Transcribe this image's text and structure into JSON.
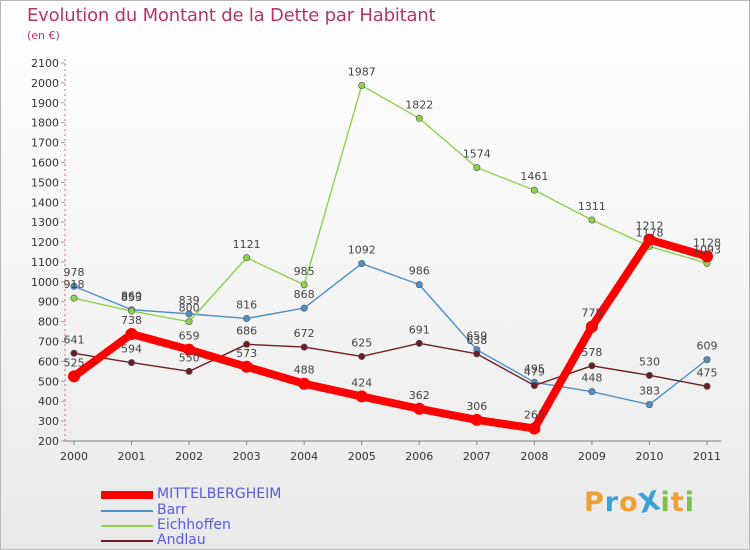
{
  "chart_data": {
    "type": "line",
    "title": "Evolution du Montant de la Dette par Habitant",
    "subtitle": "(en €)",
    "x": [
      "2000",
      "2001",
      "2002",
      "2003",
      "2004",
      "2005",
      "2006",
      "2007",
      "2008",
      "2009",
      "2010",
      "2011"
    ],
    "y_ticks": [
      200,
      300,
      400,
      500,
      600,
      700,
      800,
      900,
      1000,
      1100,
      1200,
      1300,
      1400,
      1500,
      1600,
      1700,
      1800,
      1900,
      2000,
      2100
    ],
    "ylim": [
      200,
      2100
    ],
    "grid": false,
    "legend_position": "bottom-left",
    "series": [
      {
        "name": "MITTELBERGHEIM",
        "color": "#ff0000",
        "values": [
          525,
          738,
          659,
          573,
          488,
          424,
          362,
          306,
          263,
          775,
          1212,
          1128
        ],
        "labels": [
          "525",
          "738",
          "659",
          "573",
          "488",
          "424",
          "362",
          "306",
          "263",
          "775",
          "1212",
          "1128"
        ]
      },
      {
        "name": "Barr",
        "color": "#4f8fc8",
        "values": [
          978,
          860,
          839,
          816,
          868,
          1092,
          986,
          659,
          495,
          448,
          383,
          609
        ],
        "labels": [
          "978",
          "860",
          "839",
          "816",
          "868",
          "1092",
          "986",
          "659",
          "495",
          "448",
          "383",
          "609"
        ]
      },
      {
        "name": "Eichhoffen",
        "color": "#8ed14b",
        "values": [
          918,
          853,
          800,
          1121,
          985,
          1987,
          1822,
          1574,
          1461,
          1311,
          1178,
          1093
        ],
        "labels": [
          "918",
          "853",
          "800",
          "1121",
          "985",
          "1987",
          "1822",
          "1574",
          "1461",
          "1311",
          "1178",
          "1093"
        ]
      },
      {
        "name": "Andlau",
        "color": "#6b1f24",
        "values": [
          641,
          594,
          550,
          686,
          672,
          625,
          691,
          638,
          479,
          578,
          530,
          475
        ],
        "labels": [
          "641",
          "594",
          "550",
          "686",
          "672",
          "625",
          "691",
          "638",
          "479",
          "578",
          "530",
          "475"
        ]
      }
    ]
  },
  "logo": {
    "text": "ProXiti",
    "letters": [
      {
        "ch": "P",
        "color": "#f0a030"
      },
      {
        "ch": "r",
        "color": "#3aa0d8"
      },
      {
        "ch": "o",
        "color": "#f0a030"
      },
      {
        "ch": "X",
        "color": "#3aa0d8"
      },
      {
        "ch": "i",
        "color": "#7cc24a"
      },
      {
        "ch": "t",
        "color": "#f0a030"
      },
      {
        "ch": "i",
        "color": "#7cc24a"
      }
    ]
  }
}
